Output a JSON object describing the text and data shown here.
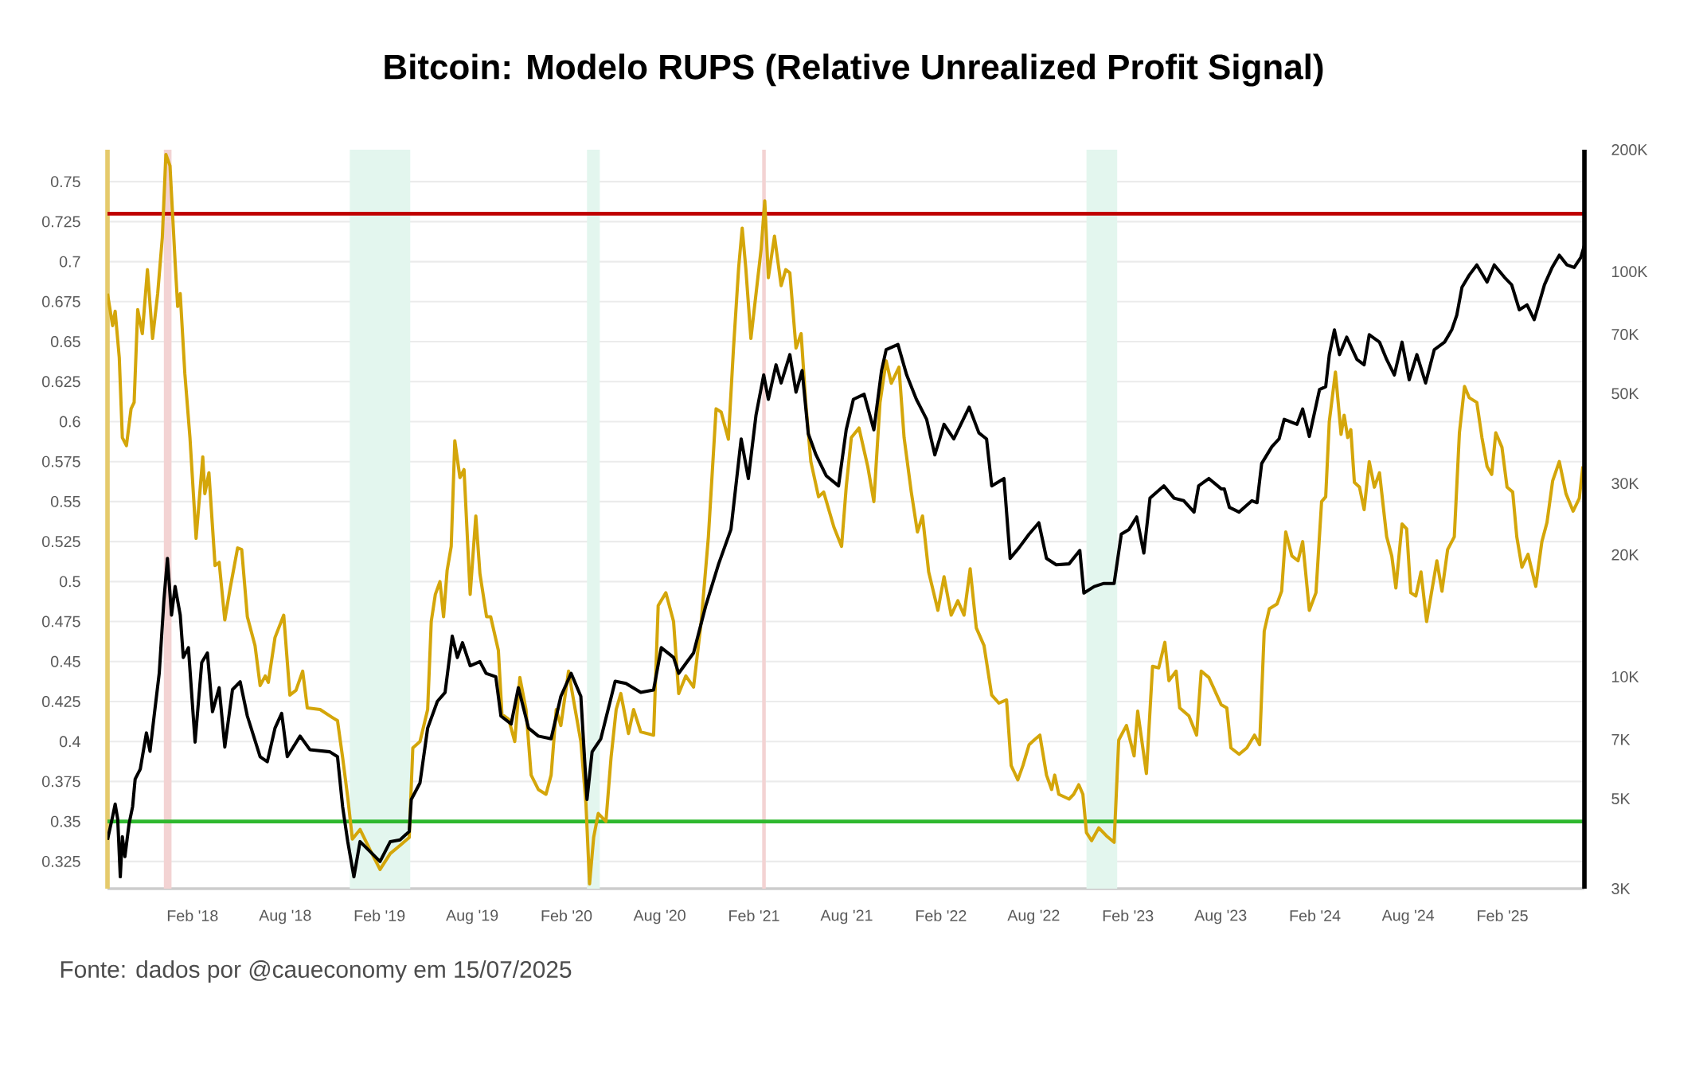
{
  "chart_data": {
    "type": "line",
    "title": "Bitcoin: Modelo RUPS (Relative Unrealized Profit Signal)",
    "annotations": [
      "Fonte: dados por @caueconomy em 15/07/2025"
    ],
    "xlim": [
      "2017-08-19",
      "2025-07-11"
    ],
    "xticks": [
      {
        "value": "2018-02-01",
        "label": "Feb '18"
      },
      {
        "value": "2018-08-01",
        "label": "Aug '18"
      },
      {
        "value": "2019-02-01",
        "label": "Feb '19"
      },
      {
        "value": "2019-08-01",
        "label": "Aug '19"
      },
      {
        "value": "2020-02-01",
        "label": "Feb '20"
      },
      {
        "value": "2020-08-01",
        "label": "Aug '20"
      },
      {
        "value": "2021-02-01",
        "label": "Feb '21"
      },
      {
        "value": "2021-08-01",
        "label": "Aug '21"
      },
      {
        "value": "2022-02-01",
        "label": "Feb '22"
      },
      {
        "value": "2022-08-01",
        "label": "Aug '22"
      },
      {
        "value": "2023-02-01",
        "label": "Feb '23"
      },
      {
        "value": "2023-08-01",
        "label": "Aug '23"
      },
      {
        "value": "2024-02-01",
        "label": "Feb '24"
      },
      {
        "value": "2024-08-01",
        "label": "Aug '24"
      },
      {
        "value": "2025-02-01",
        "label": "Feb '25"
      }
    ],
    "ylim": [
      0.308,
      0.77
    ],
    "yticks": [
      0.325,
      0.35,
      0.375,
      0.4,
      0.425,
      0.45,
      0.475,
      0.5,
      0.525,
      0.55,
      0.575,
      0.6,
      0.625,
      0.65,
      0.675,
      0.7,
      0.725,
      0.75
    ],
    "y2lim": [
      3000,
      200000
    ],
    "y2ticks": [
      {
        "value": 3000,
        "label": "3K"
      },
      {
        "value": 5000,
        "label": "5K"
      },
      {
        "value": 7000,
        "label": "7K"
      },
      {
        "value": 10000,
        "label": "10K"
      },
      {
        "value": 20000,
        "label": "20K"
      },
      {
        "value": 30000,
        "label": "30K"
      },
      {
        "value": 50000,
        "label": "50K"
      },
      {
        "value": 70000,
        "label": "70K"
      },
      {
        "value": 100000,
        "label": "100K"
      },
      {
        "value": 200000,
        "label": "200K"
      }
    ],
    "log": "y2",
    "grid": "y",
    "ref_lines": [
      {
        "axis": "y",
        "value": 0.73,
        "color": "#c00000"
      },
      {
        "axis": "y",
        "value": 0.35,
        "color": "#2eb82e"
      }
    ],
    "bands": [
      {
        "axis": "x",
        "from": "2017-12-07",
        "to": "2017-12-22",
        "color": "#f3d3d3"
      },
      {
        "axis": "x",
        "from": "2018-12-05",
        "to": "2019-04-02",
        "color": "#e3f6ee"
      },
      {
        "axis": "x",
        "from": "2020-03-12",
        "to": "2020-04-06",
        "color": "#e3f6ee"
      },
      {
        "axis": "x",
        "from": "2021-02-17",
        "to": "2021-02-24",
        "color": "#f3d3d3"
      },
      {
        "axis": "x",
        "from": "2022-11-12",
        "to": "2023-01-11",
        "color": "#e3f6ee"
      }
    ],
    "series": [
      {
        "color": "#d4a60a",
        "axis": "y",
        "x": [
          "2017-08-19",
          "2017-08-29",
          "2017-09-03",
          "2017-09-11",
          "2017-09-17",
          "2017-09-25",
          "2017-10-04",
          "2017-10-10",
          "2017-10-17",
          "2017-10-26",
          "2017-11-05",
          "2017-11-15",
          "2017-11-25",
          "2017-12-04",
          "2017-12-11",
          "2017-12-19",
          "2017-12-29",
          "2018-01-03",
          "2018-01-08",
          "2018-01-17",
          "2018-01-27",
          "2018-02-08",
          "2018-02-21",
          "2018-02-25",
          "2018-03-05",
          "2018-03-17",
          "2018-03-25",
          "2018-04-05",
          "2018-04-15",
          "2018-04-30",
          "2018-05-08",
          "2018-05-19",
          "2018-06-03",
          "2018-06-13",
          "2018-06-23",
          "2018-06-29",
          "2018-07-12",
          "2018-07-29",
          "2018-08-10",
          "2018-08-22",
          "2018-09-04",
          "2018-09-13",
          "2018-10-08",
          "2018-11-01",
          "2018-11-11",
          "2018-11-21",
          "2018-12-01",
          "2018-12-10",
          "2018-12-25",
          "2019-01-14",
          "2019-02-02",
          "2019-02-22",
          "2019-03-13",
          "2019-03-31",
          "2019-04-07",
          "2019-04-21",
          "2019-05-06",
          "2019-05-13",
          "2019-05-21",
          "2019-05-30",
          "2019-06-06",
          "2019-06-13",
          "2019-06-21",
          "2019-06-28",
          "2019-07-08",
          "2019-07-16",
          "2019-07-28",
          "2019-08-08",
          "2019-08-16",
          "2019-08-29",
          "2019-09-06",
          "2019-09-21",
          "2019-09-28",
          "2019-10-11",
          "2019-10-23",
          "2019-11-02",
          "2019-11-14",
          "2019-11-24",
          "2019-12-08",
          "2019-12-23",
          "2020-01-02",
          "2020-01-12",
          "2020-01-21",
          "2020-02-05",
          "2020-02-18",
          "2020-02-29",
          "2020-03-10",
          "2020-03-17",
          "2020-03-25",
          "2020-04-03",
          "2020-04-18",
          "2020-04-28",
          "2020-05-08",
          "2020-05-17",
          "2020-06-01",
          "2020-06-11",
          "2020-06-25",
          "2020-07-20",
          "2020-07-29",
          "2020-08-13",
          "2020-08-28",
          "2020-09-07",
          "2020-09-21",
          "2020-10-06",
          "2020-10-21",
          "2020-11-04",
          "2020-11-19",
          "2020-11-29",
          "2020-12-13",
          "2020-12-23",
          "2021-01-02",
          "2021-01-09",
          "2021-01-16",
          "2021-01-26",
          "2021-02-05",
          "2021-02-15",
          "2021-02-22",
          "2021-03-01",
          "2021-03-13",
          "2021-03-26",
          "2021-04-04",
          "2021-04-12",
          "2021-04-24",
          "2021-05-04",
          "2021-05-13",
          "2021-05-23",
          "2021-06-07",
          "2021-06-17",
          "2021-07-07",
          "2021-07-22",
          "2021-07-31",
          "2021-08-10",
          "2021-08-25",
          "2021-09-11",
          "2021-09-23",
          "2021-10-05",
          "2021-10-17",
          "2021-10-27",
          "2021-11-11",
          "2021-11-21",
          "2021-12-05",
          "2021-12-17",
          "2021-12-27",
          "2022-01-08",
          "2022-01-26",
          "2022-02-07",
          "2022-02-21",
          "2022-03-06",
          "2022-03-18",
          "2022-03-30",
          "2022-04-11",
          "2022-04-26",
          "2022-05-11",
          "2022-05-25",
          "2022-06-09",
          "2022-06-18",
          "2022-07-01",
          "2022-07-11",
          "2022-07-23",
          "2022-08-02",
          "2022-08-13",
          "2022-08-26",
          "2022-09-05",
          "2022-09-11",
          "2022-09-19",
          "2022-10-09",
          "2022-10-18",
          "2022-10-28",
          "2022-11-05",
          "2022-11-12",
          "2022-11-22",
          "2022-12-06",
          "2022-12-21",
          "2023-01-05",
          "2023-01-14",
          "2023-01-29",
          "2023-02-13",
          "2023-02-20",
          "2023-03-09",
          "2023-03-21",
          "2023-04-02",
          "2023-04-14",
          "2023-04-22",
          "2023-05-06",
          "2023-05-13",
          "2023-05-31",
          "2023-06-15",
          "2023-06-24",
          "2023-07-09",
          "2023-08-02",
          "2023-08-13",
          "2023-08-21",
          "2023-09-06",
          "2023-09-21",
          "2023-10-06",
          "2023-10-16",
          "2023-10-25",
          "2023-11-04",
          "2023-11-19",
          "2023-11-28",
          "2023-12-06",
          "2023-12-18",
          "2023-12-30",
          "2024-01-08",
          "2024-01-21",
          "2024-02-03",
          "2024-02-14",
          "2024-02-22",
          "2024-02-29",
          "2024-03-12",
          "2024-03-23",
          "2024-03-29",
          "2024-04-05",
          "2024-04-11",
          "2024-04-18",
          "2024-04-28",
          "2024-05-07",
          "2024-05-17",
          "2024-05-27",
          "2024-06-06",
          "2024-06-20",
          "2024-06-30",
          "2024-07-08",
          "2024-07-20",
          "2024-07-29",
          "2024-08-06",
          "2024-08-16",
          "2024-08-26",
          "2024-09-06",
          "2024-09-16",
          "2024-09-26",
          "2024-10-06",
          "2024-10-17",
          "2024-10-30",
          "2024-11-09",
          "2024-11-19",
          "2024-11-28",
          "2024-12-13",
          "2024-12-23",
          "2025-01-02",
          "2025-01-11",
          "2025-01-19",
          "2025-01-31",
          "2025-02-10",
          "2025-02-21",
          "2025-03-01",
          "2025-03-11",
          "2025-03-23",
          "2025-04-07",
          "2025-04-19",
          "2025-04-29",
          "2025-05-10",
          "2025-05-23",
          "2025-06-05",
          "2025-06-19",
          "2025-07-01",
          "2025-07-08"
        ],
        "values": [
          0.68,
          0.66,
          0.669,
          0.64,
          0.59,
          0.585,
          0.608,
          0.612,
          0.67,
          0.655,
          0.695,
          0.652,
          0.68,
          0.715,
          0.767,
          0.76,
          0.7,
          0.672,
          0.68,
          0.63,
          0.59,
          0.527,
          0.578,
          0.555,
          0.568,
          0.51,
          0.512,
          0.476,
          0.495,
          0.521,
          0.52,
          0.478,
          0.46,
          0.435,
          0.441,
          0.437,
          0.465,
          0.479,
          0.429,
          0.432,
          0.444,
          0.421,
          0.42,
          0.415,
          0.413,
          0.39,
          0.365,
          0.339,
          0.345,
          0.332,
          0.32,
          0.33,
          0.335,
          0.34,
          0.396,
          0.4,
          0.42,
          0.475,
          0.492,
          0.5,
          0.478,
          0.507,
          0.522,
          0.588,
          0.565,
          0.57,
          0.492,
          0.541,
          0.505,
          0.478,
          0.478,
          0.457,
          0.417,
          0.414,
          0.4,
          0.44,
          0.42,
          0.379,
          0.37,
          0.367,
          0.379,
          0.42,
          0.41,
          0.444,
          0.42,
          0.4,
          0.361,
          0.311,
          0.34,
          0.355,
          0.35,
          0.39,
          0.42,
          0.43,
          0.405,
          0.42,
          0.406,
          0.404,
          0.485,
          0.493,
          0.475,
          0.43,
          0.441,
          0.434,
          0.475,
          0.528,
          0.608,
          0.606,
          0.589,
          0.646,
          0.696,
          0.721,
          0.696,
          0.652,
          0.68,
          0.708,
          0.738,
          0.69,
          0.716,
          0.685,
          0.695,
          0.693,
          0.646,
          0.655,
          0.612,
          0.575,
          0.553,
          0.556,
          0.534,
          0.522,
          0.559,
          0.59,
          0.596,
          0.572,
          0.55,
          0.612,
          0.638,
          0.624,
          0.634,
          0.59,
          0.556,
          0.531,
          0.541,
          0.506,
          0.482,
          0.503,
          0.479,
          0.488,
          0.479,
          0.508,
          0.471,
          0.46,
          0.429,
          0.424,
          0.426,
          0.385,
          0.376,
          0.385,
          0.398,
          0.401,
          0.404,
          0.379,
          0.37,
          0.379,
          0.367,
          0.364,
          0.367,
          0.373,
          0.367,
          0.343,
          0.338,
          0.346,
          0.341,
          0.337,
          0.401,
          0.41,
          0.391,
          0.419,
          0.38,
          0.447,
          0.446,
          0.462,
          0.438,
          0.444,
          0.421,
          0.416,
          0.404,
          0.444,
          0.44,
          0.423,
          0.421,
          0.396,
          0.392,
          0.396,
          0.404,
          0.398,
          0.469,
          0.483,
          0.486,
          0.494,
          0.531,
          0.516,
          0.513,
          0.525,
          0.482,
          0.493,
          0.55,
          0.553,
          0.6,
          0.631,
          0.592,
          0.604,
          0.59,
          0.595,
          0.562,
          0.559,
          0.545,
          0.575,
          0.559,
          0.568,
          0.528,
          0.516,
          0.496,
          0.536,
          0.533,
          0.493,
          0.491,
          0.506,
          0.475,
          0.494,
          0.513,
          0.494,
          0.52,
          0.528,
          0.593,
          0.622,
          0.615,
          0.612,
          0.59,
          0.572,
          0.567,
          0.593,
          0.584,
          0.559,
          0.556,
          0.528,
          0.509,
          0.517,
          0.497,
          0.525,
          0.537,
          0.563,
          0.575,
          0.555,
          0.544,
          0.552,
          0.572
        ]
      },
      {
        "color": "#000000",
        "axis": "y2",
        "x": [
          "2017-08-19",
          "2017-08-29",
          "2017-09-03",
          "2017-09-08",
          "2017-09-13",
          "2017-09-17",
          "2017-09-22",
          "2017-09-30",
          "2017-10-07",
          "2017-10-12",
          "2017-10-22",
          "2017-11-03",
          "2017-11-10",
          "2017-11-18",
          "2017-11-28",
          "2017-12-07",
          "2017-12-14",
          "2017-12-22",
          "2017-12-29",
          "2018-01-08",
          "2018-01-14",
          "2018-01-24",
          "2018-02-06",
          "2018-02-19",
          "2018-03-02",
          "2018-03-12",
          "2018-03-25",
          "2018-04-05",
          "2018-04-20",
          "2018-05-05",
          "2018-05-19",
          "2018-06-13",
          "2018-06-27",
          "2018-07-12",
          "2018-07-25",
          "2018-08-05",
          "2018-08-30",
          "2018-09-18",
          "2018-10-27",
          "2018-11-11",
          "2018-11-21",
          "2018-12-01",
          "2018-12-13",
          "2018-12-25",
          "2019-01-14",
          "2019-02-02",
          "2019-02-22",
          "2019-03-13",
          "2019-03-31",
          "2019-04-04",
          "2019-04-21",
          "2019-05-06",
          "2019-05-25",
          "2019-06-09",
          "2019-06-23",
          "2019-07-03",
          "2019-07-13",
          "2019-07-28",
          "2019-08-16",
          "2019-08-28",
          "2019-09-16",
          "2019-09-26",
          "2019-10-16",
          "2019-10-30",
          "2019-11-19",
          "2019-12-08",
          "2020-01-02",
          "2020-01-21",
          "2020-02-10",
          "2020-02-29",
          "2020-03-12",
          "2020-03-22",
          "2020-04-08",
          "2020-05-06",
          "2020-05-27",
          "2020-06-25",
          "2020-07-20",
          "2020-08-04",
          "2020-08-28",
          "2020-09-07",
          "2020-10-06",
          "2020-10-30",
          "2020-11-24",
          "2020-12-18",
          "2021-01-07",
          "2021-01-21",
          "2021-02-05",
          "2021-02-20",
          "2021-03-01",
          "2021-03-16",
          "2021-03-26",
          "2021-04-12",
          "2021-04-24",
          "2021-05-06",
          "2021-05-18",
          "2021-06-02",
          "2021-06-22",
          "2021-07-16",
          "2021-07-31",
          "2021-08-14",
          "2021-09-04",
          "2021-09-23",
          "2021-10-08",
          "2021-10-17",
          "2021-11-09",
          "2021-11-26",
          "2021-12-15",
          "2022-01-04",
          "2022-01-20",
          "2022-02-07",
          "2022-02-26",
          "2022-03-28",
          "2022-04-16",
          "2022-05-01",
          "2022-05-11",
          "2022-06-04",
          "2022-06-16",
          "2022-07-03",
          "2022-07-23",
          "2022-08-11",
          "2022-08-26",
          "2022-09-14",
          "2022-10-09",
          "2022-10-30",
          "2022-11-07",
          "2022-11-27",
          "2022-12-16",
          "2023-01-05",
          "2023-01-19",
          "2023-02-03",
          "2023-02-18",
          "2023-03-04",
          "2023-03-16",
          "2023-04-12",
          "2023-05-02",
          "2023-05-21",
          "2023-06-10",
          "2023-06-19",
          "2023-07-09",
          "2023-08-02",
          "2023-08-08",
          "2023-08-18",
          "2023-09-06",
          "2023-10-01",
          "2023-10-11",
          "2023-10-20",
          "2023-11-09",
          "2023-11-23",
          "2023-12-03",
          "2023-12-28",
          "2024-01-08",
          "2024-01-21",
          "2024-02-10",
          "2024-02-22",
          "2024-02-29",
          "2024-03-10",
          "2024-03-20",
          "2024-04-03",
          "2024-04-23",
          "2024-05-07",
          "2024-05-17",
          "2024-06-06",
          "2024-06-20",
          "2024-07-05",
          "2024-07-20",
          "2024-08-03",
          "2024-08-18",
          "2024-09-04",
          "2024-09-21",
          "2024-10-11",
          "2024-10-25",
          "2024-11-04",
          "2024-11-14",
          "2024-11-28",
          "2024-12-13",
          "2025-01-02",
          "2025-01-16",
          "2025-02-05",
          "2025-02-19",
          "2025-03-06",
          "2025-03-21",
          "2025-04-04",
          "2025-04-14",
          "2025-04-24",
          "2025-05-09",
          "2025-05-23",
          "2025-06-07",
          "2025-06-21",
          "2025-07-04",
          "2025-07-11"
        ],
        "values": [
          3960,
          4520,
          4850,
          4450,
          3210,
          4030,
          3600,
          4330,
          4780,
          5590,
          5920,
          7270,
          6550,
          8000,
          10200,
          15350,
          19600,
          14200,
          16700,
          14200,
          11160,
          11800,
          6900,
          10850,
          11450,
          8200,
          9400,
          6710,
          9300,
          9720,
          8000,
          6350,
          6170,
          7470,
          8120,
          6350,
          7140,
          6610,
          6530,
          6350,
          4780,
          3920,
          3210,
          3920,
          3700,
          3500,
          3920,
          3960,
          4150,
          4980,
          5470,
          7470,
          8700,
          9150,
          12600,
          11160,
          12140,
          10650,
          10900,
          10200,
          10000,
          8000,
          7650,
          9400,
          7470,
          7140,
          7030,
          8950,
          10200,
          8950,
          4980,
          6530,
          7030,
          9750,
          9630,
          9150,
          9280,
          11800,
          11160,
          10200,
          11450,
          15000,
          19000,
          23100,
          38650,
          30860,
          44300,
          55600,
          48400,
          58900,
          53100,
          62400,
          50400,
          57000,
          39800,
          35300,
          31350,
          29600,
          40700,
          48400,
          49800,
          40700,
          57000,
          64200,
          66100,
          55600,
          48400,
          43200,
          35300,
          42000,
          38650,
          46300,
          40000,
          38650,
          29600,
          30860,
          19600,
          20800,
          22500,
          24000,
          19600,
          18900,
          19000,
          20500,
          16100,
          16700,
          17000,
          17000,
          22500,
          23100,
          24800,
          20200,
          27600,
          29600,
          27600,
          27200,
          25500,
          29600,
          30860,
          29100,
          29100,
          26200,
          25500,
          27200,
          26900,
          33600,
          37000,
          38650,
          43200,
          42000,
          45800,
          39200,
          51200,
          52000,
          62400,
          71800,
          62400,
          68900,
          60700,
          58900,
          69900,
          67000,
          60700,
          55600,
          67000,
          54100,
          62400,
          53100,
          64200,
          67000,
          71800,
          78200,
          91500,
          98000,
          103900,
          94200,
          103900,
          96800,
          92800,
          80500,
          82800,
          76100,
          83900,
          92800,
          102400,
          109800,
          103900,
          102400,
          108400,
          116200
        ]
      }
    ]
  }
}
